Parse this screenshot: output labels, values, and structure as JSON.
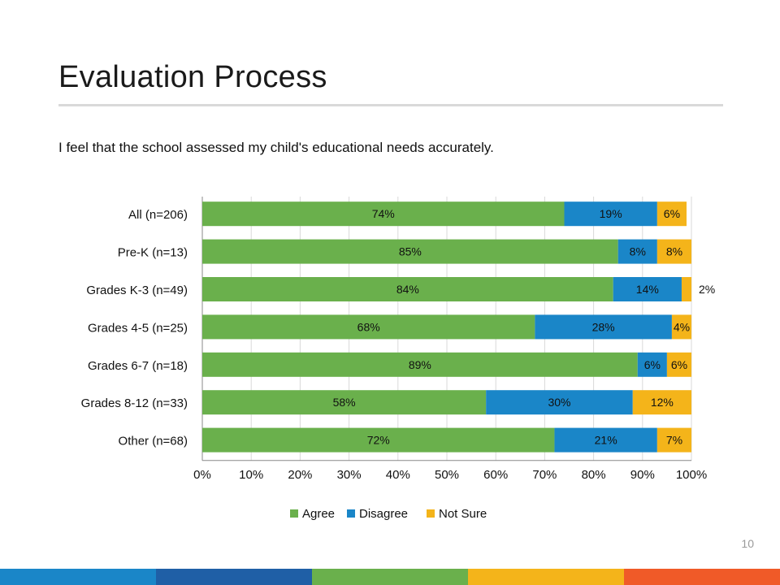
{
  "slide": {
    "title": "Evaluation Process",
    "question": "I feel that the school assessed my child's educational needs accurately.",
    "page_number": "10"
  },
  "colors": {
    "agree": "#6ab04c",
    "disagree": "#1a86c8",
    "not_sure": "#f4b41a",
    "gridline": "#d9d9d9",
    "footer": [
      "#1a86c8",
      "#1f5fa6",
      "#6ab04c",
      "#f4b41a",
      "#f05a28"
    ]
  },
  "chart_data": {
    "type": "bar",
    "orientation": "horizontal",
    "stacked": true,
    "categories": [
      "All (n=206)",
      "Pre-K (n=13)",
      "Grades K-3 (n=49)",
      "Grades 4-5 (n=25)",
      "Grades 6-7 (n=18)",
      "Grades 8-12 (n=33)",
      "Other (n=68)"
    ],
    "series": [
      {
        "name": "Agree",
        "values": [
          74,
          85,
          84,
          68,
          89,
          58,
          72
        ],
        "labels": [
          "74%",
          "85%",
          "84%",
          "68%",
          "89%",
          "58%",
          "72%"
        ],
        "color": "#6ab04c"
      },
      {
        "name": "Disagree",
        "values": [
          19,
          8,
          14,
          28,
          6,
          30,
          21
        ],
        "labels": [
          "19%",
          "8%",
          "14%",
          "28%",
          "6%",
          "30%",
          "21%"
        ],
        "color": "#1a86c8"
      },
      {
        "name": "Not Sure",
        "values": [
          6,
          8,
          2,
          4,
          6,
          12,
          7
        ],
        "labels": [
          "6%",
          "8%",
          "2%",
          "4%",
          "6%",
          "12%",
          "7%"
        ],
        "color": "#f4b41a"
      }
    ],
    "x_ticks": [
      "0%",
      "10%",
      "20%",
      "30%",
      "40%",
      "50%",
      "60%",
      "70%",
      "80%",
      "90%",
      "100%"
    ],
    "xlim": [
      0,
      100
    ],
    "grid": true,
    "legend_position": "bottom"
  }
}
